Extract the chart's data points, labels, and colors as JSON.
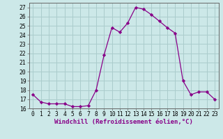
{
  "x": [
    0,
    1,
    2,
    3,
    4,
    5,
    6,
    7,
    8,
    9,
    10,
    11,
    12,
    13,
    14,
    15,
    16,
    17,
    18,
    19,
    20,
    21,
    22,
    23
  ],
  "y": [
    17.5,
    16.7,
    16.5,
    16.5,
    16.5,
    16.2,
    16.2,
    16.3,
    18.0,
    21.8,
    24.8,
    24.3,
    25.3,
    27.0,
    26.8,
    26.2,
    25.5,
    24.8,
    24.2,
    19.0,
    17.5,
    17.8,
    17.8,
    17.0
  ],
  "line_color": "#880088",
  "marker": "D",
  "marker_size": 2.2,
  "bg_color": "#cce8e8",
  "grid_color": "#aacccc",
  "xlabel": "Windchill (Refroidissement éolien,°C)",
  "xlabel_fontsize": 6.5,
  "ylim": [
    16,
    27.5
  ],
  "xlim": [
    -0.5,
    23.5
  ],
  "yticks": [
    16,
    17,
    18,
    19,
    20,
    21,
    22,
    23,
    24,
    25,
    26,
    27
  ],
  "xticks": [
    0,
    1,
    2,
    3,
    4,
    5,
    6,
    7,
    8,
    9,
    10,
    11,
    12,
    13,
    14,
    15,
    16,
    17,
    18,
    19,
    20,
    21,
    22,
    23
  ],
  "tick_fontsize": 5.8,
  "spine_color": "#666666"
}
